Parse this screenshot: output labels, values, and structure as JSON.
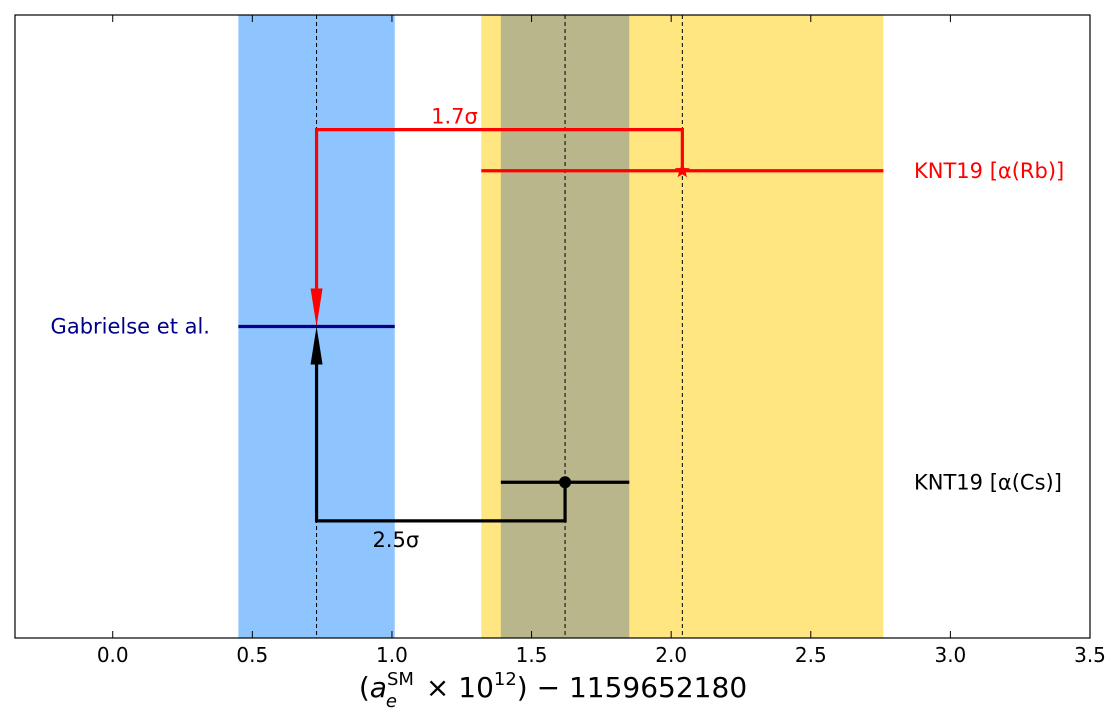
{
  "chart_data": {
    "type": "scatter",
    "title": "",
    "xlabel_parts": {
      "open": "(",
      "symbol": "a",
      "superscript": "SM",
      "subscript": "e",
      "times": " × 10",
      "exponent": "12",
      "rest": ") − 1159652180"
    },
    "ylabel": "",
    "xlim": [
      -0.35,
      3.5
    ],
    "xticks": [
      0.0,
      0.5,
      1.0,
      1.5,
      2.0,
      2.5,
      3.0,
      3.5
    ],
    "xtick_labels": [
      "0.0",
      "0.5",
      "1.0",
      "1.5",
      "2.0",
      "2.5",
      "3.0",
      "3.5"
    ],
    "yticks_shown": false,
    "grid": false,
    "bands": [
      {
        "name": "Gabrielse et al. band",
        "x_min": 0.45,
        "x_max": 1.01,
        "color": "#8ec5ff"
      },
      {
        "name": "KNT19 [α(Rb)] band",
        "x_min": 1.32,
        "x_max": 2.76,
        "color": "#ffe680"
      },
      {
        "name": "KNT19 [α(Cs)] band",
        "x_min": 1.39,
        "x_max": 1.85,
        "color": "#b8b68a"
      }
    ],
    "vlines_dashed": [
      0.73,
      1.62,
      2.04
    ],
    "measurements": [
      {
        "label": "KNT19 [α(Rb)]",
        "value": 2.04,
        "x_min": 1.32,
        "x_max": 2.76,
        "y_level": 0.75,
        "marker": "star",
        "color": "#ff0000"
      },
      {
        "label": "Gabrielse et al.",
        "value": 0.73,
        "x_min": 0.45,
        "x_max": 1.01,
        "y_level": 0.5,
        "marker": "none",
        "color": "#00008b"
      },
      {
        "label": "KNT19 [α(Cs)]",
        "value": 1.62,
        "x_min": 1.39,
        "x_max": 1.85,
        "y_level": 0.25,
        "marker": "circle",
        "color": "#000000"
      }
    ],
    "arrows": [
      {
        "label": "1.7σ",
        "from_value": 2.04,
        "to_value": 0.73,
        "color": "#ff0000"
      },
      {
        "label": "2.5σ",
        "from_value": 1.62,
        "to_value": 0.73,
        "color": "#000000"
      }
    ]
  }
}
